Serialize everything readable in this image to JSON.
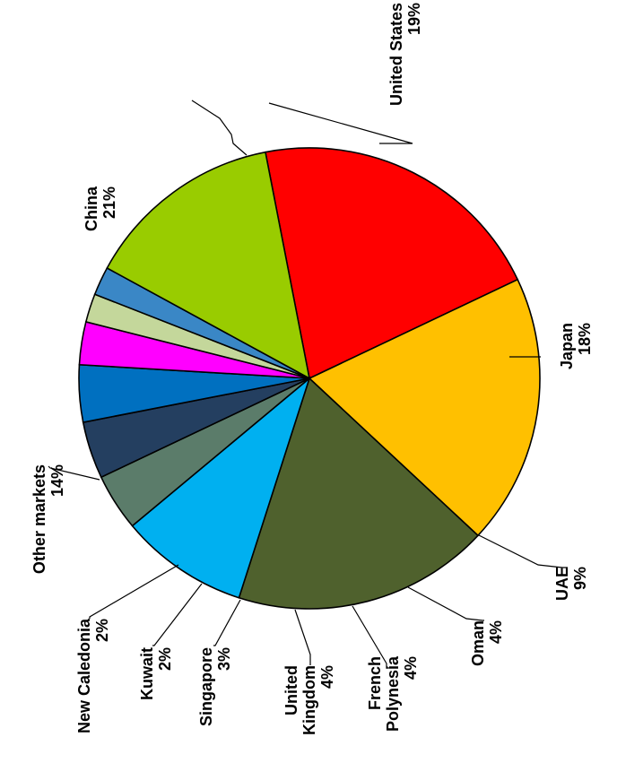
{
  "chart_data": {
    "type": "pie",
    "title": "",
    "orientation": "rotated 90 degrees clockwise",
    "slices": [
      {
        "name": "China",
        "value": 21,
        "label": "21%",
        "color": "#ff0000"
      },
      {
        "name": "United States",
        "value": 19,
        "label": "19%",
        "color": "#ffc000"
      },
      {
        "name": "Japan",
        "value": 18,
        "label": "18%",
        "color": "#4f612d"
      },
      {
        "name": "UAE",
        "value": 9,
        "label": "9%",
        "color": "#00b0f0"
      },
      {
        "name": "Oman",
        "value": 4,
        "label": "4%",
        "color": "#5b7c6a"
      },
      {
        "name": "French Polynesia",
        "value": 4,
        "label": "4%",
        "color": "#243f60"
      },
      {
        "name": "United Kingdom",
        "value": 4,
        "label": "4%",
        "color": "#0070c0"
      },
      {
        "name": "Singapore",
        "value": 3,
        "label": "3%",
        "color": "#ff00ff"
      },
      {
        "name": "Kuwait",
        "value": 2,
        "label": "2%",
        "color": "#c4d79b"
      },
      {
        "name": "New Caledonia",
        "value": 2,
        "label": "2%",
        "color": "#3a87c6"
      },
      {
        "name": "Other markets",
        "value": 14,
        "label": "14%",
        "color": "#99cc00"
      }
    ]
  }
}
